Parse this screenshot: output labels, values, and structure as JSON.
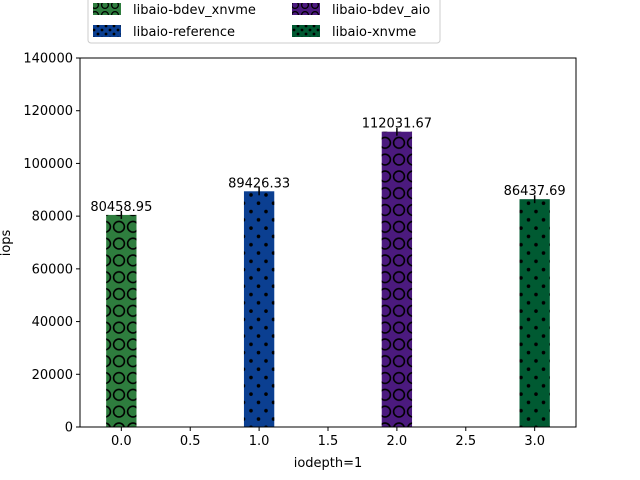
{
  "chart_data": {
    "type": "bar",
    "xlabel": "iodepth=1",
    "ylabel": "iops",
    "xlim": [
      -0.3,
      3.3
    ],
    "ylim": [
      0,
      140000
    ],
    "xticks": [
      "0.0",
      "0.5",
      "1.0",
      "1.5",
      "2.0",
      "2.5",
      "3.0"
    ],
    "xtick_values": [
      0,
      0.5,
      1,
      1.5,
      2,
      2.5,
      3
    ],
    "yticks": [
      "0",
      "20000",
      "40000",
      "60000",
      "80000",
      "100000",
      "120000",
      "140000"
    ],
    "ytick_values": [
      0,
      20000,
      40000,
      60000,
      80000,
      100000,
      120000,
      140000
    ],
    "grid": false,
    "legend_placement": "top-center, above plot",
    "series": [
      {
        "name": "libaio-bdev_xnvme",
        "x": 0,
        "value": 80458.95,
        "label": "80458.95",
        "color": "#2e7d3e",
        "pattern": "circles"
      },
      {
        "name": "libaio-reference",
        "x": 1,
        "value": 89426.33,
        "label": "89426.33",
        "color": "#0b3f91",
        "pattern": "dots"
      },
      {
        "name": "libaio-bdev_aio",
        "x": 2,
        "value": 112031.67,
        "label": "112031.67",
        "color": "#4b1a7e",
        "pattern": "circles"
      },
      {
        "name": "libaio-xnvme",
        "x": 3,
        "value": 86437.69,
        "label": "86437.69",
        "color": "#005a32",
        "pattern": "dots"
      }
    ]
  }
}
